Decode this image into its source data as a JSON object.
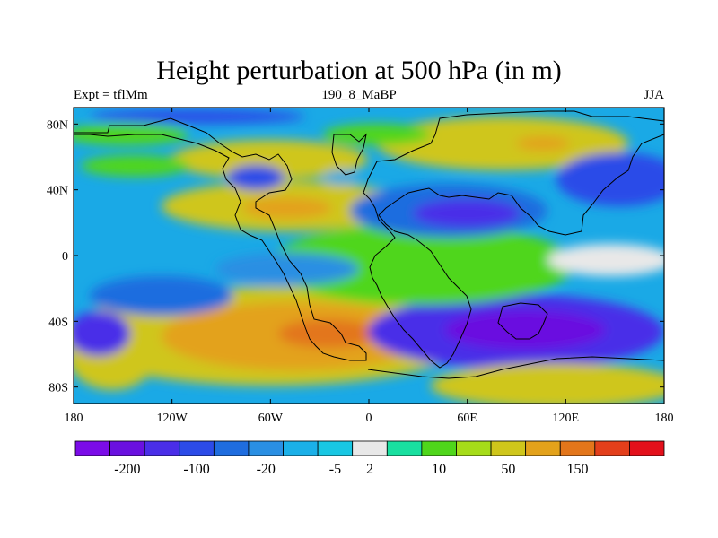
{
  "title": "Height perturbation at 500 hPa (in m)",
  "subtitle_left": "Expt = tflMm",
  "subtitle_center": "190_8_MaBP",
  "subtitle_right": "JJA",
  "map": {
    "lon_range": [
      -180,
      180
    ],
    "lat_range": [
      -90,
      90
    ],
    "x_ticks": [
      "180",
      "120W",
      "60W",
      "0",
      "60E",
      "120E",
      "180"
    ],
    "y_ticks": [
      "80N",
      "40N",
      "0",
      "40S",
      "80S"
    ]
  },
  "colorbar": {
    "colors": [
      "#7b0ce8",
      "#6a10e0",
      "#4a2ee8",
      "#2c4be8",
      "#1f6ddf",
      "#2a8fe3",
      "#1bb0e8",
      "#18c7e3",
      "#e8e8e8",
      "#19e0a0",
      "#4fd61b",
      "#a6dc19",
      "#cfc61b",
      "#e3a21b",
      "#e3761b",
      "#e33f1b",
      "#e3101b"
    ],
    "labels": [
      "-200",
      "-100",
      "-20",
      "-5",
      "2",
      "10",
      "50",
      "150"
    ]
  }
}
